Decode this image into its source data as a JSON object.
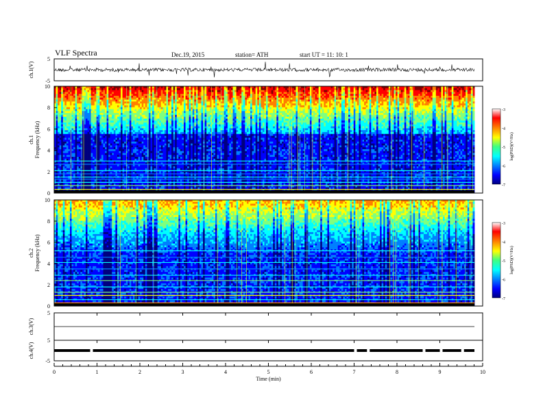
{
  "header": {
    "title": "VLF  Spectra",
    "date": "Dec.19, 2015",
    "station": "station= ATH",
    "start": "start  UT  =    11: 10: 1"
  },
  "chart_data": [
    {
      "type": "line",
      "panel": "ch1-waveform",
      "ylabel": "ch.1(V)",
      "ylim": [
        -5,
        5
      ],
      "y_ticks": [
        "5",
        "-5"
      ],
      "xlim": [
        0,
        10
      ],
      "baseline": 0
    },
    {
      "type": "heatmap",
      "panel": "ch1-spectrogram",
      "ylabel": "ch.1\nFrequency  (kHz)",
      "ylim": [
        0,
        10
      ],
      "y_ticks": [
        "0",
        "2",
        "4",
        "6",
        "8",
        "10"
      ],
      "xlim": [
        0,
        9.8
      ],
      "colorbar": {
        "label": "log(PSD)(V²/Hz)",
        "range": [
          -7,
          -3
        ],
        "ticks": [
          "-3",
          "-4",
          "-5",
          "-6",
          "-7"
        ]
      }
    },
    {
      "type": "heatmap",
      "panel": "ch2-spectrogram",
      "ylabel": "ch.2\nFrequency  (kHz)",
      "ylim": [
        0,
        10
      ],
      "y_ticks": [
        "0",
        "2",
        "4",
        "6",
        "8",
        "10"
      ],
      "xlim": [
        0,
        9.8
      ],
      "colorbar": {
        "label": "log(PSD)(V²/Hz)",
        "range": [
          -7,
          -3
        ],
        "ticks": [
          "-3",
          "-4",
          "-5",
          "-6",
          "-7"
        ]
      }
    },
    {
      "type": "line",
      "panel": "ch3-waveform",
      "ylabel": "ch.3(V)",
      "ylim": [
        -5,
        5
      ],
      "y_ticks": [
        "5"
      ],
      "xlim": [
        0,
        10
      ],
      "baseline": 0
    },
    {
      "type": "line",
      "panel": "ch4-waveform",
      "ylabel": "ch.4(V)",
      "ylim": [
        -5,
        5
      ],
      "y_ticks": [
        "5",
        "-5"
      ],
      "xlim": [
        0,
        10
      ],
      "baseline": 0
    }
  ],
  "x_axis": {
    "label": "Time  (min)",
    "ticks": [
      "0",
      "1",
      "2",
      "3",
      "4",
      "5",
      "6",
      "7",
      "8",
      "9",
      "10"
    ]
  },
  "colors": {
    "jet": [
      "#00007f",
      "#0000ff",
      "#007fff",
      "#00ffff",
      "#7fff7f",
      "#ffff00",
      "#ff7f00",
      "#ff0000",
      "#7f0000"
    ]
  }
}
